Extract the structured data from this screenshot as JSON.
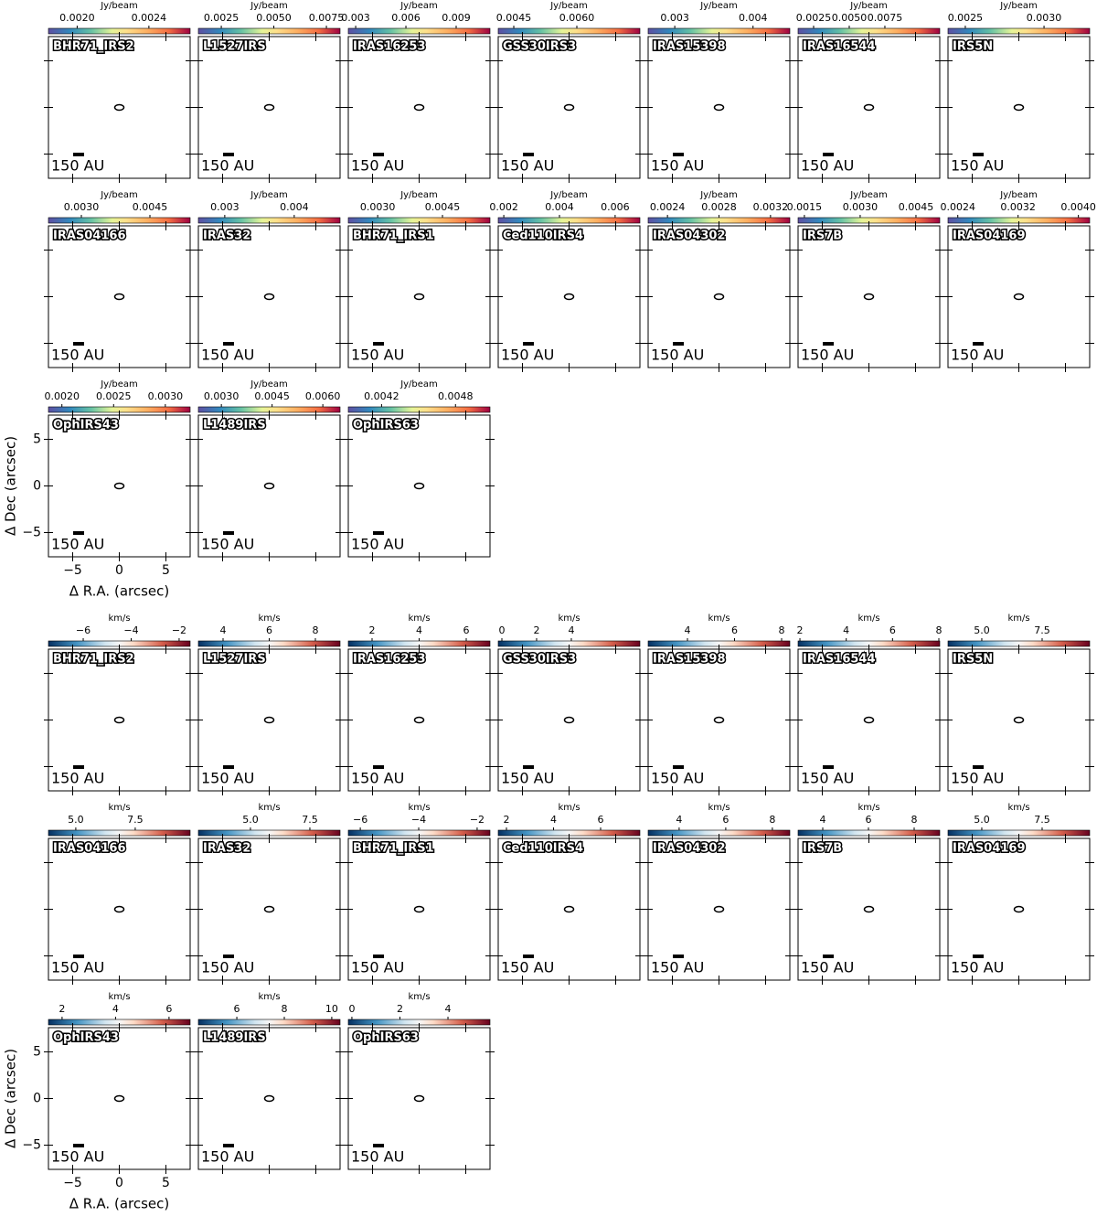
{
  "axes": {
    "xlabel": "Δ R.A. (arcsec)",
    "ylabel": "Δ Dec (arcsec)",
    "xlim": [
      -7.6,
      7.6
    ],
    "ylim": [
      -7.6,
      7.6
    ],
    "xticks": [
      {
        "value": -5,
        "label": "−5"
      },
      0,
      5
    ],
    "yticks": [
      {
        "value": -5,
        "label": "−5"
      },
      0,
      5
    ]
  },
  "scale_bar_label": "150 AU",
  "blocks": [
    {
      "colorbar_unit": "Jy/beam",
      "colormap": "spectral",
      "panels": [
        {
          "name": "BHR71_IRS2",
          "clim": [
            0.00184,
            0.00263
          ],
          "cticks": [
            {
              "value": 0.002,
              "label": "0.0020"
            },
            0.0024
          ]
        },
        {
          "name": "L1527IRS",
          "clim": [
            0.00141,
            0.00815
          ],
          "cticks": [
            0.0025,
            {
              "value": 0.005,
              "label": "0.0050"
            },
            0.0075
          ]
        },
        {
          "name": "IRAS16253",
          "clim": [
            0.00256,
            0.01102
          ],
          "cticks": [
            0.003,
            0.006,
            0.009
          ]
        },
        {
          "name": "GSS30IRS3",
          "clim": [
            0.00413,
            0.0075
          ],
          "cticks": [
            0.0045,
            {
              "value": 0.006,
              "label": "0.0060"
            }
          ]
        },
        {
          "name": "IRAS15398",
          "clim": [
            0.00266,
            0.00447
          ],
          "cticks": [
            0.003,
            0.004
          ]
        },
        {
          "name": "IRAS16544",
          "clim": [
            0.00141,
            0.01135
          ],
          "cticks": [
            0.0025,
            {
              "value": 0.005,
              "label": "0.0050"
            },
            0.0075
          ]
        },
        {
          "name": "IRS5N",
          "clim": [
            0.00239,
            0.00329
          ],
          "cticks": [
            0.0025,
            {
              "value": 0.003,
              "label": "0.0030"
            }
          ]
        },
        {
          "name": "IRAS04166",
          "clim": [
            0.00228,
            0.00538
          ],
          "cticks": [
            {
              "value": 0.003,
              "label": "0.0030"
            },
            0.0045
          ]
        },
        {
          "name": "IRAS32",
          "clim": [
            0.00262,
            0.00466
          ],
          "cticks": [
            0.003,
            0.004
          ]
        },
        {
          "name": "BHR71_IRS1",
          "clim": [
            0.00232,
            0.0056
          ],
          "cticks": [
            {
              "value": 0.003,
              "label": "0.0030"
            },
            0.0045
          ]
        },
        {
          "name": "Ced110IRS4",
          "clim": [
            0.0018,
            0.00689
          ],
          "cticks": [
            0.002,
            0.004,
            0.006
          ]
        },
        {
          "name": "IRAS04302",
          "clim": [
            0.00225,
            0.00335
          ],
          "cticks": [
            0.0024,
            0.0028,
            0.0032
          ]
        },
        {
          "name": "IRS7B",
          "clim": [
            0.00133,
            0.00514
          ],
          "cticks": [
            0.0015,
            {
              "value": 0.003,
              "label": "0.0030"
            },
            0.0045
          ]
        },
        {
          "name": "IRAS04169",
          "clim": [
            0.00227,
            0.00415
          ],
          "cticks": [
            0.0024,
            0.0032,
            {
              "value": 0.004,
              "label": "0.0040"
            }
          ]
        },
        {
          "name": "OphIRS43",
          "clim": [
            0.00187,
            0.00324
          ],
          "cticks": [
            {
              "value": 0.002,
              "label": "0.0020"
            },
            0.0025,
            {
              "value": 0.003,
              "label": "0.0030"
            }
          ]
        },
        {
          "name": "L1489IRS",
          "clim": [
            0.00232,
            0.00651
          ],
          "cticks": [
            {
              "value": 0.003,
              "label": "0.0030"
            },
            0.0045,
            {
              "value": 0.006,
              "label": "0.0060"
            }
          ]
        },
        {
          "name": "OphIRS63",
          "clim": [
            0.00393,
            0.00508
          ],
          "cticks": [
            0.0042,
            0.0048
          ]
        }
      ]
    },
    {
      "colorbar_unit": "km/s",
      "colormap": "rdbu",
      "panels": [
        {
          "name": "BHR71_IRS2",
          "clim": [
            -7.45,
            -1.54
          ],
          "cticks": [
            {
              "value": -6,
              "label": "−6"
            },
            {
              "value": -4,
              "label": "−4"
            },
            {
              "value": -2,
              "label": "−2"
            }
          ]
        },
        {
          "name": "L1527IRS",
          "clim": [
            2.93,
            9.07
          ],
          "cticks": [
            4,
            6,
            8
          ]
        },
        {
          "name": "IRAS16253",
          "clim": [
            0.99,
            7.01
          ],
          "cticks": [
            2,
            4,
            6
          ]
        },
        {
          "name": "GSS30IRS3",
          "clim": [
            -0.21,
            7.95
          ],
          "cticks": [
            0,
            2,
            4
          ]
        },
        {
          "name": "IRAS15398",
          "clim": [
            2.33,
            8.35
          ],
          "cticks": [
            4,
            6,
            8
          ]
        },
        {
          "name": "IRAS16544",
          "clim": [
            1.92,
            8.04
          ],
          "cticks": [
            2,
            4,
            6,
            8
          ]
        },
        {
          "name": "IRS5N",
          "clim": [
            3.6,
            9.47
          ],
          "cticks": [
            {
              "value": 5,
              "label": "5.0"
            },
            7.5
          ]
        },
        {
          "name": "IRAS04166",
          "clim": [
            3.85,
            9.81
          ],
          "cticks": [
            {
              "value": 5,
              "label": "5.0"
            },
            7.5
          ]
        },
        {
          "name": "IRAS32",
          "clim": [
            2.81,
            8.77
          ],
          "cticks": [
            {
              "value": 5,
              "label": "5.0"
            },
            7.5
          ]
        },
        {
          "name": "BHR71_IRS1",
          "clim": [
            -6.41,
            -1.56
          ],
          "cticks": [
            {
              "value": -6,
              "label": "−6"
            },
            {
              "value": -4,
              "label": "−4"
            },
            {
              "value": -2,
              "label": "−2"
            }
          ]
        },
        {
          "name": "Ced110IRS4",
          "clim": [
            1.65,
            7.67
          ],
          "cticks": [
            2,
            4,
            6
          ]
        },
        {
          "name": "IRAS04302",
          "clim": [
            2.67,
            8.75
          ],
          "cticks": [
            4,
            6,
            8
          ]
        },
        {
          "name": "IRS7B",
          "clim": [
            2.92,
            9.12
          ],
          "cticks": [
            4,
            6,
            8
          ]
        },
        {
          "name": "IRAS04169",
          "clim": [
            3.6,
            9.47
          ],
          "cticks": [
            {
              "value": 5,
              "label": "5.0"
            },
            7.5
          ]
        },
        {
          "name": "OphIRS43",
          "clim": [
            1.49,
            6.79
          ],
          "cticks": [
            2,
            4,
            6
          ]
        },
        {
          "name": "L1489IRS",
          "clim": [
            4.38,
            10.35
          ],
          "cticks": [
            6,
            8,
            10
          ]
        },
        {
          "name": "OphIRS63",
          "clim": [
            -0.15,
            5.75
          ],
          "cticks": [
            0,
            2,
            4
          ]
        }
      ]
    }
  ]
}
